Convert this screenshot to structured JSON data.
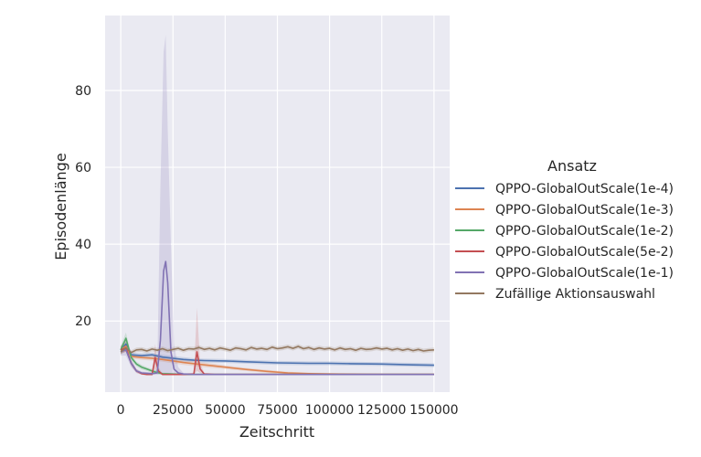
{
  "chart_data": {
    "type": "line",
    "title": "",
    "xlabel": "Zeitschritt",
    "ylabel": "Episodenlänge",
    "xlim": [
      -7500,
      157500
    ],
    "ylim": [
      1.5,
      99.5
    ],
    "xticks": [
      0,
      25000,
      50000,
      75000,
      100000,
      125000,
      150000
    ],
    "yticks": [
      20,
      40,
      60,
      80
    ],
    "grid": true,
    "legend": {
      "title": "Ansatz",
      "placement": "right-outside"
    },
    "series": [
      {
        "name": "QPPO-GlobalOutScale(1e-4)",
        "color": "#4c72b0",
        "x": [
          0,
          2500,
          5000,
          10000,
          15000,
          20000,
          25000,
          30000,
          35000,
          40000,
          50000,
          60000,
          75000,
          90000,
          100000,
          110000,
          125000,
          140000,
          150000
        ],
        "y": [
          12.5,
          14.0,
          11.2,
          11.0,
          11.2,
          10.6,
          10.3,
          10.0,
          9.8,
          9.7,
          9.6,
          9.4,
          9.1,
          9.0,
          9.0,
          8.9,
          8.8,
          8.6,
          8.5
        ],
        "lower": [
          11.5,
          12.5,
          10.6,
          10.4,
          10.6,
          10.0,
          9.7,
          9.4,
          9.3,
          9.2,
          9.1,
          8.9,
          8.6,
          8.5,
          8.5,
          8.4,
          8.3,
          8.1,
          8.0
        ],
        "upper": [
          13.5,
          15.5,
          11.8,
          11.6,
          11.8,
          11.2,
          10.9,
          10.6,
          10.3,
          10.2,
          10.1,
          9.9,
          9.6,
          9.5,
          9.5,
          9.4,
          9.3,
          9.1,
          9.0
        ]
      },
      {
        "name": "QPPO-GlobalOutScale(1e-3)",
        "color": "#dd8452",
        "x": [
          0,
          2500,
          5000,
          10000,
          15000,
          20000,
          25000,
          30000,
          40000,
          50000,
          60000,
          70000,
          80000,
          90000,
          100000,
          125000,
          150000
        ],
        "y": [
          12.5,
          13.5,
          10.8,
          10.5,
          10.3,
          10.0,
          9.6,
          9.2,
          8.6,
          8.0,
          7.4,
          6.9,
          6.5,
          6.3,
          6.2,
          6.1,
          6.1
        ],
        "lower": [
          11.5,
          12.0,
          10.2,
          9.9,
          9.7,
          9.4,
          9.0,
          8.6,
          8.0,
          7.5,
          7.0,
          6.5,
          6.2,
          6.0,
          5.9,
          5.9,
          5.9
        ],
        "upper": [
          13.5,
          15.0,
          11.4,
          11.1,
          10.9,
          10.6,
          10.2,
          9.8,
          9.2,
          8.5,
          7.8,
          7.3,
          6.8,
          6.6,
          6.5,
          6.3,
          6.3
        ]
      },
      {
        "name": "QPPO-GlobalOutScale(1e-2)",
        "color": "#55a868",
        "x": [
          0,
          2500,
          5000,
          7500,
          10000,
          12500,
          15000,
          17500,
          20000,
          30000,
          50000,
          75000,
          100000,
          125000,
          150000
        ],
        "y": [
          12.5,
          15.5,
          10.5,
          8.8,
          8.0,
          7.5,
          7.0,
          6.6,
          6.3,
          6.1,
          6.1,
          6.1,
          6.1,
          6.1,
          6.1
        ],
        "lower": [
          11.5,
          14.0,
          9.8,
          8.2,
          7.4,
          7.0,
          6.5,
          6.2,
          6.0,
          5.9,
          5.9,
          5.9,
          5.9,
          5.9,
          5.9
        ],
        "upper": [
          13.5,
          17.0,
          11.2,
          9.4,
          8.6,
          8.0,
          7.5,
          7.0,
          6.6,
          6.3,
          6.3,
          6.3,
          6.3,
          6.3,
          6.3
        ]
      },
      {
        "name": "QPPO-GlobalOutScale(5e-2)",
        "color": "#c44e52",
        "x": [
          0,
          2500,
          5000,
          7500,
          10000,
          12500,
          15000,
          16500,
          18000,
          20000,
          25000,
          30000,
          35000,
          36500,
          38000,
          40000,
          45000,
          50000,
          75000,
          100000,
          125000,
          150000
        ],
        "y": [
          12.5,
          13.0,
          9.0,
          7.0,
          6.3,
          6.1,
          6.1,
          10.5,
          7.0,
          6.1,
          6.1,
          6.1,
          6.2,
          12.0,
          7.5,
          6.2,
          6.1,
          6.1,
          6.1,
          6.1,
          6.1,
          6.1
        ],
        "lower": [
          11.5,
          12.0,
          8.3,
          6.5,
          6.0,
          5.9,
          5.9,
          7.5,
          6.3,
          5.9,
          5.9,
          5.9,
          6.0,
          7.0,
          6.5,
          6.0,
          5.9,
          5.9,
          5.9,
          5.9,
          5.9,
          5.9
        ],
        "upper": [
          13.5,
          14.0,
          9.7,
          7.5,
          6.6,
          6.3,
          6.4,
          14.0,
          8.0,
          6.3,
          6.3,
          6.3,
          6.5,
          23.5,
          9.0,
          6.5,
          6.3,
          6.3,
          6.3,
          6.3,
          6.3,
          6.3
        ]
      },
      {
        "name": "QPPO-GlobalOutScale(1e-1)",
        "color": "#8172b3",
        "x": [
          0,
          2500,
          5000,
          7500,
          10000,
          15000,
          17500,
          19000,
          20500,
          21500,
          22500,
          24000,
          25500,
          27500,
          30000,
          35000,
          50000,
          75000,
          100000,
          125000,
          150000
        ],
        "y": [
          12.0,
          12.5,
          9.0,
          7.0,
          6.5,
          6.3,
          6.5,
          15.0,
          33.0,
          35.5,
          30.0,
          12.0,
          7.5,
          6.5,
          6.2,
          6.1,
          6.1,
          6.1,
          6.1,
          6.1,
          6.1
        ],
        "lower": [
          11.0,
          11.0,
          8.0,
          6.5,
          6.1,
          6.0,
          6.0,
          6.2,
          6.5,
          6.5,
          6.3,
          6.1,
          6.0,
          6.0,
          6.0,
          5.9,
          5.9,
          5.9,
          5.9,
          5.9,
          5.9
        ],
        "upper": [
          13.0,
          14.0,
          10.0,
          7.5,
          6.9,
          6.6,
          7.5,
          55.0,
          90.0,
          94.5,
          70.0,
          40.0,
          14.0,
          8.0,
          6.5,
          6.3,
          6.3,
          6.3,
          6.3,
          6.3,
          6.3
        ]
      },
      {
        "name": "Zufällige Aktionsauswahl",
        "color": "#937860",
        "x": [
          0,
          2500,
          5000,
          7500,
          10000,
          12500,
          15000,
          17500,
          20000,
          22500,
          25000,
          27500,
          30000,
          32500,
          35000,
          37500,
          40000,
          42500,
          45000,
          47500,
          50000,
          52500,
          55000,
          57500,
          60000,
          62500,
          65000,
          67500,
          70000,
          72500,
          75000,
          77500,
          80000,
          82500,
          85000,
          87500,
          90000,
          92500,
          95000,
          97500,
          100000,
          102500,
          105000,
          107500,
          110000,
          112500,
          115000,
          117500,
          120000,
          122500,
          125000,
          127500,
          130000,
          132500,
          135000,
          137500,
          140000,
          142500,
          145000,
          147500,
          150000
        ],
        "y": [
          12.0,
          13.0,
          11.8,
          12.5,
          12.6,
          12.2,
          12.7,
          12.4,
          12.8,
          12.3,
          12.6,
          12.9,
          12.4,
          12.8,
          12.7,
          13.1,
          12.6,
          12.9,
          12.5,
          13.0,
          12.7,
          12.4,
          13.0,
          12.8,
          12.5,
          13.1,
          12.7,
          12.9,
          12.6,
          13.2,
          12.8,
          13.0,
          13.3,
          12.9,
          13.4,
          12.8,
          13.1,
          12.6,
          13.0,
          12.7,
          12.9,
          12.5,
          13.0,
          12.6,
          12.8,
          12.4,
          12.9,
          12.6,
          12.7,
          13.0,
          12.7,
          12.9,
          12.5,
          12.8,
          12.4,
          12.7,
          12.3,
          12.6,
          12.2,
          12.4,
          12.5
        ],
        "lower": [
          11.2,
          12.2,
          11.2,
          11.9,
          12.0,
          11.6,
          12.1,
          11.8,
          12.2,
          11.7,
          12.0,
          12.3,
          11.8,
          12.2,
          12.1,
          12.5,
          12.0,
          12.3,
          11.9,
          12.4,
          12.1,
          11.8,
          12.4,
          12.2,
          11.9,
          12.5,
          12.1,
          12.3,
          12.0,
          12.6,
          12.2,
          12.4,
          12.7,
          12.3,
          12.8,
          12.2,
          12.5,
          12.0,
          12.4,
          12.1,
          12.3,
          11.9,
          12.4,
          12.0,
          12.2,
          11.8,
          12.3,
          12.0,
          12.1,
          12.4,
          12.1,
          12.3,
          11.9,
          12.2,
          11.8,
          12.1,
          11.7,
          12.0,
          11.6,
          11.8,
          11.9
        ],
        "upper": [
          12.8,
          13.8,
          12.4,
          13.1,
          13.2,
          12.8,
          13.3,
          13.0,
          13.4,
          12.9,
          13.2,
          13.5,
          13.0,
          13.4,
          13.3,
          13.7,
          13.2,
          13.5,
          13.1,
          13.6,
          13.3,
          13.0,
          13.6,
          13.4,
          13.1,
          13.7,
          13.3,
          13.5,
          13.2,
          13.8,
          13.4,
          13.6,
          13.9,
          13.5,
          14.0,
          13.4,
          13.7,
          13.2,
          13.6,
          13.3,
          13.5,
          13.1,
          13.6,
          13.2,
          13.4,
          13.0,
          13.5,
          13.2,
          13.3,
          13.6,
          13.3,
          13.5,
          13.1,
          13.4,
          13.0,
          13.3,
          12.9,
          13.2,
          12.8,
          13.0,
          13.1
        ]
      }
    ]
  }
}
